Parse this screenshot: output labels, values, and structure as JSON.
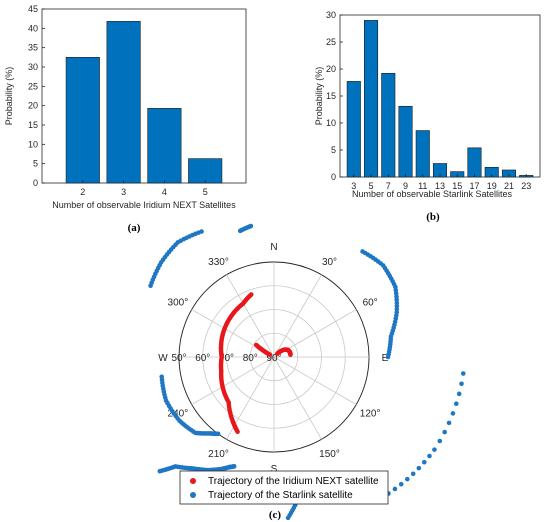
{
  "chart_data": [
    {
      "type": "bar",
      "categories": [
        "2",
        "3",
        "4",
        "5"
      ],
      "values": [
        32.5,
        41.8,
        19.3,
        6.3
      ],
      "xlabel": "Number of observable Iridium NEXT Satellites",
      "ylabel": "Probability (%)",
      "ylim": [
        0,
        45
      ],
      "yticks": [
        "0",
        "5",
        "10",
        "15",
        "20",
        "25",
        "30",
        "35",
        "40",
        "45"
      ],
      "color": "#0072BD",
      "caption": "(a)"
    },
    {
      "type": "bar",
      "categories": [
        "3",
        "5",
        "7",
        "9",
        "11",
        "13",
        "15",
        "17",
        "19",
        "21",
        "23"
      ],
      "values": [
        17.7,
        29.0,
        19.2,
        13.1,
        8.6,
        2.5,
        1.0,
        5.4,
        1.8,
        1.3,
        0.3
      ],
      "xlabel": "Number of observable Starlink Satellites",
      "ylabel": "Probability (%)",
      "ylim": [
        0,
        30
      ],
      "yticks": [
        "0",
        "5",
        "10",
        "15",
        "20",
        "25",
        "30"
      ],
      "color": "#0072BD",
      "caption": "(b)"
    },
    {
      "type": "scatter",
      "subtype": "polar",
      "angle_labels": [
        "N",
        "30°",
        "60°",
        "E",
        "120°",
        "150°",
        "S",
        "210°",
        "240°",
        "W",
        "300°",
        "330°"
      ],
      "radial_labels": [
        "90°",
        "80°",
        "70°",
        "60°",
        "50°"
      ],
      "legend": [
        "Trajectory of the Iridium NEXT satellite",
        "Trajectory of the Starlink satellite"
      ],
      "legend_position": "bottom",
      "series": [
        {
          "name": "Trajectory of the Iridium NEXT satellite",
          "color": "#e8171a",
          "tracks": [
            [
              [
                299,
                88
              ],
              [
                301,
                84.5
              ],
              [
                304,
                81
              ]
            ],
            [
              [
                340,
                62
              ],
              [
                330,
                64
              ],
              [
                315,
                65
              ],
              [
                300,
                66
              ],
              [
                285,
                67
              ],
              [
                270,
                68
              ],
              [
                255,
                67
              ],
              [
                240,
                65
              ],
              [
                225,
                63
              ],
              [
                213,
                58
              ],
              [
                206,
                55
              ]
            ],
            [
              [
                44,
                88
              ],
              [
                53,
                85
              ],
              [
                62,
                83.5
              ],
              [
                73,
                83
              ],
              [
                82,
                83
              ]
            ]
          ]
        },
        {
          "name": "Trajectory of the Starlink satellite",
          "color": "#1f77c4",
          "tracks": [
            [
              [
                300,
                30
              ],
              [
                310,
                28
              ],
              [
                320,
                27
              ],
              [
                330,
                29
              ]
            ],
            [
              [
                345,
                35
              ],
              [
                350,
                34
              ]
            ],
            [
              [
                40,
                32
              ],
              [
                50,
                30
              ],
              [
                60,
                31
              ],
              [
                70,
                35
              ],
              [
                80,
                40
              ],
              [
                90,
                42
              ]
            ],
            [
              [
                95,
                10
              ],
              [
                120,
                12
              ],
              [
                140,
                15
              ]
            ],
            [
              [
                260,
                42
              ],
              [
                248,
                41
              ],
              [
                236,
                42
              ],
              [
                226,
                44
              ],
              [
                220,
                48
              ],
              [
                216,
                50
              ]
            ],
            [
              [
                225,
                22
              ],
              [
                222,
                28
              ],
              [
                216,
                32
              ],
              [
                210,
                35
              ],
              [
                205,
                38
              ],
              [
                202,
                40
              ],
              [
                200,
                41
              ]
            ],
            [
              [
                175,
                22
              ],
              [
                170,
                30
              ],
              [
                166,
                39
              ]
            ],
            [
              [
                200,
                27
              ],
              [
                198,
                32
              ]
            ]
          ]
        }
      ],
      "caption": "(c)"
    }
  ]
}
